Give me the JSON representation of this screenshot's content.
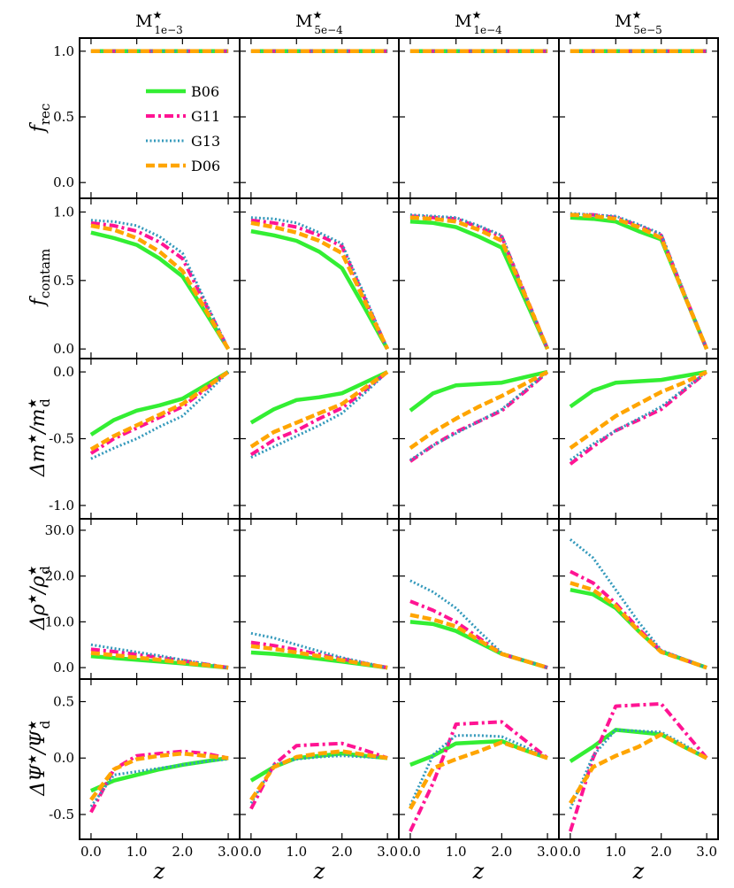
{
  "figure": {
    "col_titles": [
      {
        "main": "M",
        "sup": "★",
        "sub": "1e−3"
      },
      {
        "main": "M",
        "sup": "★",
        "sub": "5e−4"
      },
      {
        "main": "M",
        "sup": "★",
        "sub": "1e−4"
      },
      {
        "main": "M",
        "sup": "★",
        "sub": "5e−5"
      }
    ],
    "row_labels": [
      {
        "main": "f",
        "sub": "rec",
        "tail": ""
      },
      {
        "main": "f",
        "sub": "contam",
        "tail": ""
      },
      {
        "main": "Δm",
        "up": "★",
        "tail": "/m",
        "sub2": "d",
        "up2": "★"
      },
      {
        "main": "Δρ",
        "up": "★",
        "tail": "/ρ",
        "sub2": "d",
        "up2": "★"
      },
      {
        "main": "ΔΨ",
        "up": "★",
        "tail": "/Ψ",
        "sub2": "d",
        "up2": "★"
      }
    ],
    "xlabel": "z"
  },
  "legend": {
    "entries": [
      {
        "label": "B06",
        "color": "#33ee33",
        "style": "solid"
      },
      {
        "label": "G11",
        "color": "#ff1493",
        "style": "dashdot"
      },
      {
        "label": "G13",
        "color": "#3399bb",
        "style": "dotted"
      },
      {
        "label": "D06",
        "color": "#ffa500",
        "style": "dashed"
      }
    ]
  },
  "chart_data": {
    "type": "line",
    "x": [
      0.0,
      0.5,
      1.0,
      1.5,
      2.0,
      2.5,
      3.0
    ],
    "xlim": [
      -0.25,
      3.25
    ],
    "xticks": [
      0.0,
      1.0,
      2.0,
      3.0
    ],
    "xtick_labels": [
      "0.0",
      "1.0",
      "2.0",
      "3.0"
    ],
    "series_names": [
      "B06",
      "G11",
      "G13",
      "D06"
    ],
    "rows": [
      {
        "name": "f_rec",
        "ylim": [
          -0.12,
          1.1
        ],
        "yticks": [
          0.0,
          0.5,
          1.0
        ],
        "ytick_labels": [
          "0.0",
          "0.5",
          "1.0"
        ],
        "panels": [
          [
            [
              1,
              1,
              1,
              1,
              1,
              1,
              1
            ],
            [
              1,
              1,
              1,
              1,
              1,
              1,
              1
            ],
            [
              1,
              1,
              1,
              1,
              1,
              1,
              1
            ],
            [
              1,
              1,
              1,
              1,
              1,
              1,
              1
            ]
          ],
          [
            [
              1,
              1,
              1,
              1,
              1,
              1,
              1
            ],
            [
              1,
              1,
              1,
              1,
              1,
              1,
              1
            ],
            [
              1,
              1,
              1,
              1,
              1,
              1,
              1
            ],
            [
              1,
              1,
              1,
              1,
              1,
              1,
              1
            ]
          ],
          [
            [
              1,
              1,
              1,
              1,
              1,
              1,
              1
            ],
            [
              1,
              1,
              1,
              1,
              1,
              1,
              1
            ],
            [
              1,
              1,
              1,
              1,
              1,
              1,
              1
            ],
            [
              1,
              1,
              1,
              1,
              1,
              1,
              1
            ]
          ],
          [
            [
              1,
              1,
              1,
              1,
              1,
              1,
              1
            ],
            [
              1,
              1,
              1,
              1,
              1,
              1,
              1
            ],
            [
              1,
              1,
              1,
              1,
              1,
              1,
              1
            ],
            [
              1,
              1,
              1,
              1,
              1,
              1,
              1
            ]
          ]
        ]
      },
      {
        "name": "f_contam",
        "ylim": [
          -0.07,
          1.1
        ],
        "yticks": [
          0.0,
          0.5,
          1.0
        ],
        "ytick_labels": [
          "0.0",
          "0.5",
          "1.0"
        ],
        "panels": [
          [
            [
              0.85,
              0.81,
              0.76,
              0.66,
              0.53,
              0.27,
              0.0
            ],
            [
              0.92,
              0.9,
              0.86,
              0.78,
              0.66,
              0.33,
              0.0
            ],
            [
              0.94,
              0.93,
              0.9,
              0.82,
              0.7,
              0.35,
              0.0
            ],
            [
              0.9,
              0.87,
              0.81,
              0.71,
              0.57,
              0.29,
              0.0
            ]
          ],
          [
            [
              0.86,
              0.83,
              0.79,
              0.71,
              0.59,
              0.3,
              0.0
            ],
            [
              0.94,
              0.92,
              0.89,
              0.83,
              0.75,
              0.37,
              0.0
            ],
            [
              0.96,
              0.95,
              0.92,
              0.85,
              0.77,
              0.39,
              0.0
            ],
            [
              0.92,
              0.89,
              0.85,
              0.79,
              0.7,
              0.35,
              0.0
            ]
          ],
          [
            [
              0.93,
              0.92,
              0.89,
              0.82,
              0.74,
              0.37,
              0.0
            ],
            [
              0.97,
              0.96,
              0.95,
              0.89,
              0.82,
              0.41,
              0.0
            ],
            [
              0.98,
              0.97,
              0.96,
              0.9,
              0.83,
              0.41,
              0.0
            ],
            [
              0.96,
              0.95,
              0.93,
              0.87,
              0.79,
              0.4,
              0.0
            ]
          ],
          [
            [
              0.96,
              0.95,
              0.93,
              0.86,
              0.8,
              0.4,
              0.0
            ],
            [
              0.98,
              0.98,
              0.96,
              0.9,
              0.83,
              0.41,
              0.0
            ],
            [
              0.99,
              0.98,
              0.97,
              0.91,
              0.84,
              0.42,
              0.0
            ],
            [
              0.98,
              0.97,
              0.95,
              0.89,
              0.81,
              0.4,
              0.0
            ]
          ]
        ]
      },
      {
        "name": "delta_m",
        "ylim": [
          -1.1,
          0.1
        ],
        "yticks": [
          -1.0,
          -0.5,
          0.0
        ],
        "ytick_labels": [
          "-1.0",
          "-0.5",
          "0.0"
        ],
        "panels": [
          [
            [
              -0.47,
              -0.36,
              -0.29,
              -0.25,
              -0.2,
              -0.1,
              0.0
            ],
            [
              -0.61,
              -0.5,
              -0.42,
              -0.34,
              -0.26,
              -0.13,
              0.0
            ],
            [
              -0.65,
              -0.57,
              -0.5,
              -0.41,
              -0.33,
              -0.17,
              0.0
            ],
            [
              -0.58,
              -0.48,
              -0.4,
              -0.32,
              -0.24,
              -0.12,
              0.0
            ]
          ],
          [
            [
              -0.38,
              -0.28,
              -0.21,
              -0.19,
              -0.16,
              -0.08,
              0.0
            ],
            [
              -0.62,
              -0.51,
              -0.44,
              -0.35,
              -0.27,
              -0.14,
              0.0
            ],
            [
              -0.64,
              -0.56,
              -0.48,
              -0.4,
              -0.31,
              -0.16,
              0.0
            ],
            [
              -0.56,
              -0.45,
              -0.38,
              -0.31,
              -0.24,
              -0.12,
              0.0
            ]
          ],
          [
            [
              -0.29,
              -0.16,
              -0.1,
              -0.09,
              -0.08,
              -0.04,
              0.0
            ],
            [
              -0.67,
              -0.55,
              -0.45,
              -0.37,
              -0.29,
              -0.15,
              0.0
            ],
            [
              -0.66,
              -0.55,
              -0.46,
              -0.37,
              -0.28,
              -0.14,
              0.0
            ],
            [
              -0.57,
              -0.45,
              -0.35,
              -0.26,
              -0.18,
              -0.09,
              0.0
            ]
          ],
          [
            [
              -0.26,
              -0.14,
              -0.08,
              -0.07,
              -0.06,
              -0.03,
              0.0
            ],
            [
              -0.69,
              -0.56,
              -0.44,
              -0.36,
              -0.28,
              -0.14,
              0.0
            ],
            [
              -0.66,
              -0.54,
              -0.44,
              -0.35,
              -0.26,
              -0.13,
              0.0
            ],
            [
              -0.57,
              -0.45,
              -0.33,
              -0.24,
              -0.15,
              -0.08,
              0.0
            ]
          ]
        ]
      },
      {
        "name": "delta_rho",
        "ylim": [
          -2.5,
          32.5
        ],
        "yticks": [
          0.0,
          10.0,
          20.0,
          30.0
        ],
        "ytick_labels": [
          "0.0",
          "10.0",
          "20.0",
          "30.0"
        ],
        "panels": [
          [
            [
              2.5,
              2.1,
              1.7,
              1.3,
              0.9,
              0.45,
              0.0
            ],
            [
              4.0,
              3.5,
              2.9,
              2.2,
              1.5,
              0.75,
              0.0
            ],
            [
              5.0,
              4.2,
              3.4,
              2.6,
              1.7,
              0.85,
              0.0
            ],
            [
              3.2,
              2.7,
              2.2,
              1.7,
              1.1,
              0.55,
              0.0
            ]
          ],
          [
            [
              3.3,
              3.0,
              2.5,
              1.9,
              1.3,
              0.65,
              0.0
            ],
            [
              5.5,
              4.8,
              3.9,
              2.9,
              1.9,
              0.95,
              0.0
            ],
            [
              7.5,
              6.5,
              5.0,
              3.6,
              2.2,
              1.1,
              0.0
            ],
            [
              4.7,
              4.1,
              3.3,
              2.5,
              1.6,
              0.8,
              0.0
            ]
          ],
          [
            [
              10.0,
              9.5,
              8.0,
              5.5,
              3.0,
              1.5,
              0.0
            ],
            [
              14.5,
              12.5,
              10.0,
              6.5,
              3.0,
              1.5,
              0.0
            ],
            [
              19.0,
              16.5,
              13.0,
              8.0,
              3.2,
              1.6,
              0.0
            ],
            [
              11.5,
              10.5,
              9.0,
              6.0,
              3.0,
              1.5,
              0.0
            ]
          ],
          [
            [
              17.0,
              16.0,
              13.0,
              8.0,
              3.5,
              1.75,
              0.0
            ],
            [
              21.0,
              18.5,
              14.0,
              8.5,
              3.6,
              1.8,
              0.0
            ],
            [
              28.0,
              24.0,
              17.0,
              10.0,
              3.8,
              1.9,
              0.0
            ],
            [
              18.5,
              17.0,
              13.5,
              8.0,
              3.4,
              1.7,
              0.0
            ]
          ]
        ]
      },
      {
        "name": "delta_psi",
        "ylim": [
          -0.72,
          0.7
        ],
        "yticks": [
          -0.5,
          0.0,
          0.5
        ],
        "ytick_labels": [
          "-0.5",
          "0.0",
          "0.5"
        ],
        "panels": [
          [
            [
              -0.29,
              -0.2,
              -0.15,
              -0.1,
              -0.06,
              -0.03,
              0.0
            ],
            [
              -0.48,
              -0.1,
              0.02,
              0.04,
              0.06,
              0.04,
              0.0
            ],
            [
              -0.43,
              -0.15,
              -0.12,
              -0.09,
              -0.06,
              -0.03,
              -0.01
            ],
            [
              -0.37,
              -0.1,
              -0.01,
              0.02,
              0.04,
              0.02,
              0.0
            ]
          ],
          [
            [
              -0.2,
              -0.08,
              0.0,
              0.02,
              0.04,
              0.02,
              0.0
            ],
            [
              -0.45,
              -0.06,
              0.11,
              0.12,
              0.13,
              0.07,
              0.0
            ],
            [
              -0.4,
              -0.06,
              -0.01,
              0.01,
              0.02,
              0.01,
              0.0
            ],
            [
              -0.37,
              -0.08,
              0.01,
              0.04,
              0.06,
              0.03,
              0.0
            ]
          ],
          [
            [
              -0.06,
              0.02,
              0.13,
              0.14,
              0.15,
              0.07,
              0.0
            ],
            [
              -0.65,
              -0.22,
              0.3,
              0.31,
              0.32,
              0.16,
              0.0
            ],
            [
              -0.42,
              0.03,
              0.2,
              0.2,
              0.19,
              0.1,
              0.0
            ],
            [
              -0.45,
              -0.09,
              -0.01,
              0.06,
              0.14,
              0.07,
              0.0
            ]
          ],
          [
            [
              -0.03,
              0.1,
              0.25,
              0.23,
              0.21,
              0.1,
              0.0
            ],
            [
              -0.65,
              0.0,
              0.46,
              0.47,
              0.48,
              0.24,
              0.0
            ],
            [
              -0.45,
              0.02,
              0.25,
              0.24,
              0.23,
              0.12,
              0.0
            ],
            [
              -0.4,
              -0.08,
              0.02,
              0.1,
              0.21,
              0.1,
              0.0
            ]
          ]
        ]
      }
    ]
  }
}
